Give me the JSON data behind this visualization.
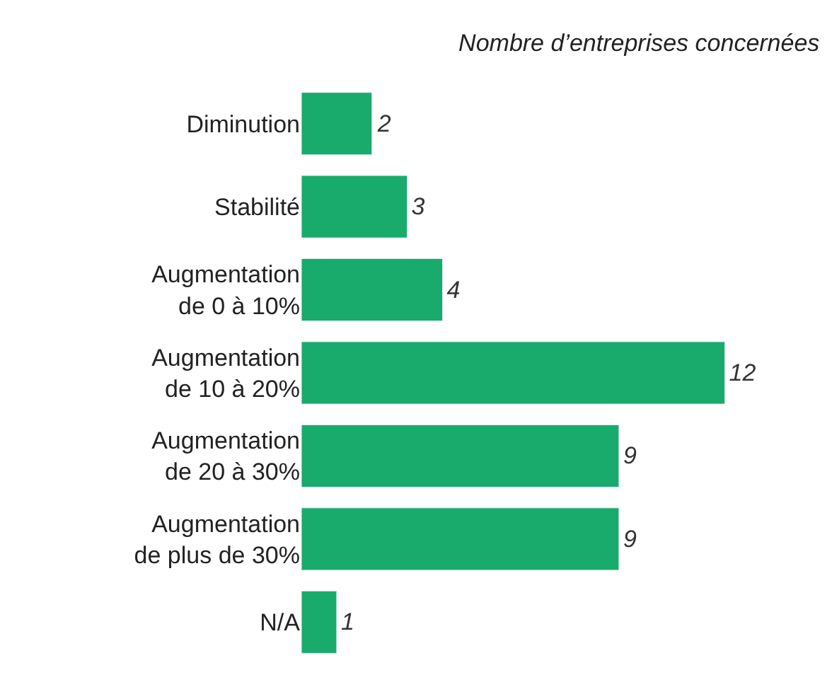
{
  "chart_data": {
    "type": "bar",
    "orientation": "horizontal",
    "title": "Nombre d’entreprises concernées",
    "categories": [
      "Diminution",
      "Stabilité",
      "Augmentation\nde 0 à 10%",
      "Augmentation\nde 10 à 20%",
      "Augmentation\nde 20 à 30%",
      "Augmentation\nde plus de 30%",
      "N/A"
    ],
    "values": [
      2,
      3,
      4,
      12,
      9,
      9,
      1
    ],
    "color": "#18ab6c",
    "data_labels": true
  }
}
